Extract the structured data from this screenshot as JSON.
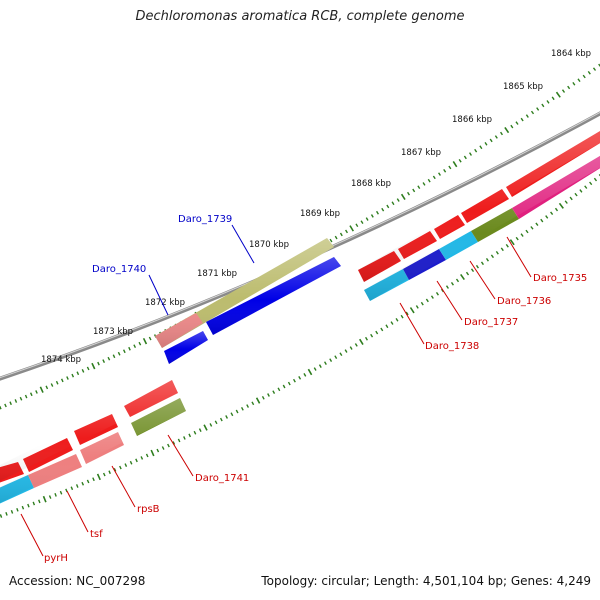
{
  "title": "Dechloromonas aromatica RCB, complete genome",
  "footer": {
    "accession": "Accession: NC_007298",
    "summary": "Topology: circular; Length: 4,501,104 bp; Genes: 4,249"
  },
  "colors": {
    "backbone": "#8a8a8a",
    "tick": "#2e7d1e",
    "label_forward": "#0000c8",
    "label_reverse": "#cc0000"
  },
  "ticks": [
    "1864 kbp",
    "1865 kbp",
    "1866 kbp",
    "1867 kbp",
    "1868 kbp",
    "1869 kbp",
    "1870 kbp",
    "1871 kbp",
    "1872 kbp",
    "1873 kbp",
    "1874 kbp"
  ],
  "genes": [
    {
      "name": "Daro_1739",
      "strand": "forward",
      "color": "#bcbc6e"
    },
    {
      "name": "Daro_1740",
      "strand": "forward",
      "color": "#0000e6"
    },
    {
      "name": "Daro_1735",
      "strand": "reverse",
      "color": "#e0207e"
    },
    {
      "name": "Daro_1736",
      "strand": "reverse",
      "color": "#6b8a1e"
    },
    {
      "name": "Daro_1737",
      "strand": "reverse",
      "color": "#22b8e6"
    },
    {
      "name": "Daro_1738",
      "strand": "reverse",
      "color": "#1c1ccc"
    },
    {
      "name": "Daro_1741",
      "strand": "reverse",
      "color": "#6b8a1e"
    },
    {
      "name": "rpsB",
      "strand": "reverse",
      "color": "#ee7f7f"
    },
    {
      "name": "tsf",
      "strand": "reverse",
      "color": "#ee7f7f"
    },
    {
      "name": "pyrH",
      "strand": "reverse",
      "color": "#22b8e6"
    }
  ]
}
